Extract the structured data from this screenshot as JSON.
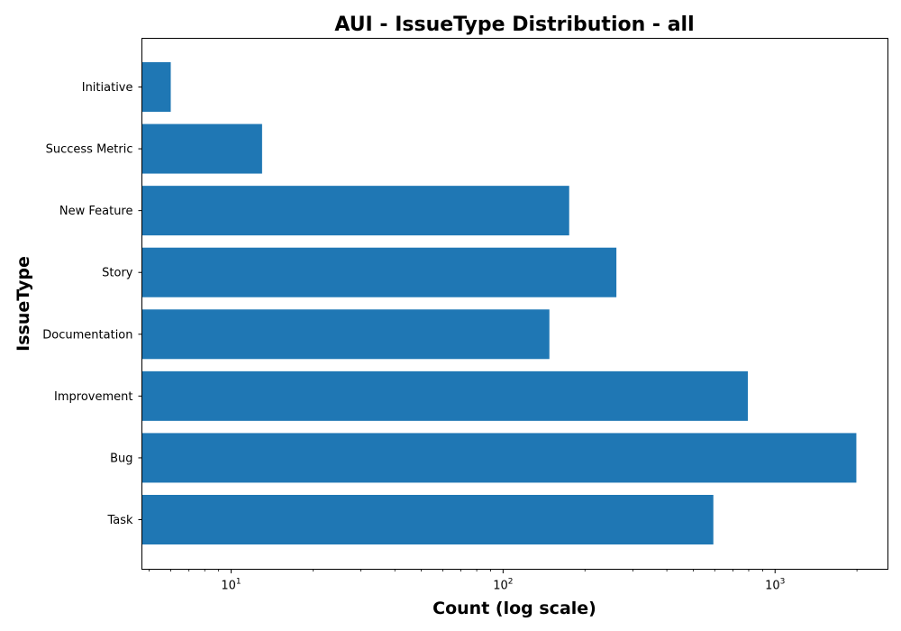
{
  "chart_data": {
    "type": "bar",
    "orientation": "horizontal",
    "title": "AUI - IssueType Distribution - all",
    "xlabel": "Count (log scale)",
    "ylabel": "IssueType",
    "x_scale": "log",
    "xlim": [
      4.7,
      2600
    ],
    "x_ticks": [
      {
        "value": 10,
        "base": "10",
        "exp": "1"
      },
      {
        "value": 100,
        "base": "10",
        "exp": "2"
      },
      {
        "value": 1000,
        "base": "10",
        "exp": "3"
      }
    ],
    "categories": [
      "Initiative",
      "Success Metric",
      "New Feature",
      "Story",
      "Documentation",
      "Improvement",
      "Bug",
      "Task"
    ],
    "values": [
      6,
      13,
      175,
      261,
      148,
      794,
      1990,
      593
    ],
    "bar_color": "#1f77b4",
    "grid": false,
    "legend": "none"
  }
}
